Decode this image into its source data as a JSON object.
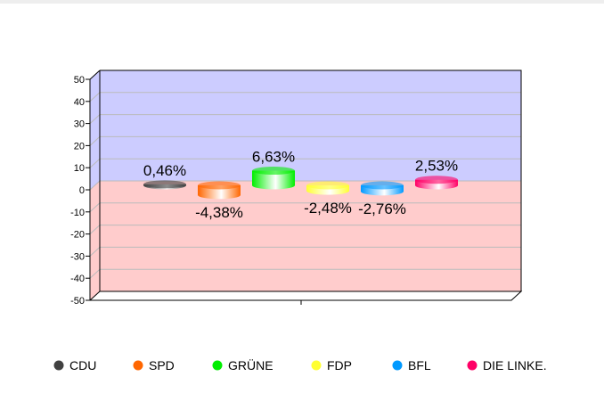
{
  "chart_data": {
    "type": "bar",
    "style": "3d-cylinder",
    "categories": [
      "CDU",
      "SPD",
      "GRÜNE",
      "FDP",
      "BFL",
      "DIE LINKE."
    ],
    "values": [
      0.46,
      -4.38,
      6.63,
      -2.48,
      -2.76,
      2.53
    ],
    "labels": [
      "0,46%",
      "-4,38%",
      "6,63%",
      "-2,48%",
      "-2,76%",
      "2,53%"
    ],
    "colors": [
      "#404040",
      "#ff6600",
      "#00ee00",
      "#ffff33",
      "#0099ff",
      "#ff0066"
    ],
    "ylim": [
      -50,
      50
    ],
    "yticks": [
      "50",
      "40",
      "30",
      "20",
      "10",
      "0",
      "-10",
      "-20",
      "-30",
      "-40",
      "-50"
    ],
    "ytick_values": [
      50,
      40,
      30,
      20,
      10,
      0,
      -10,
      -20,
      -30,
      -40,
      -50
    ],
    "positive_bg": "#ccccff",
    "negative_bg": "#ffcccc",
    "grid": true,
    "legend": "bottom",
    "title": "",
    "xlabel": "",
    "ylabel": ""
  }
}
